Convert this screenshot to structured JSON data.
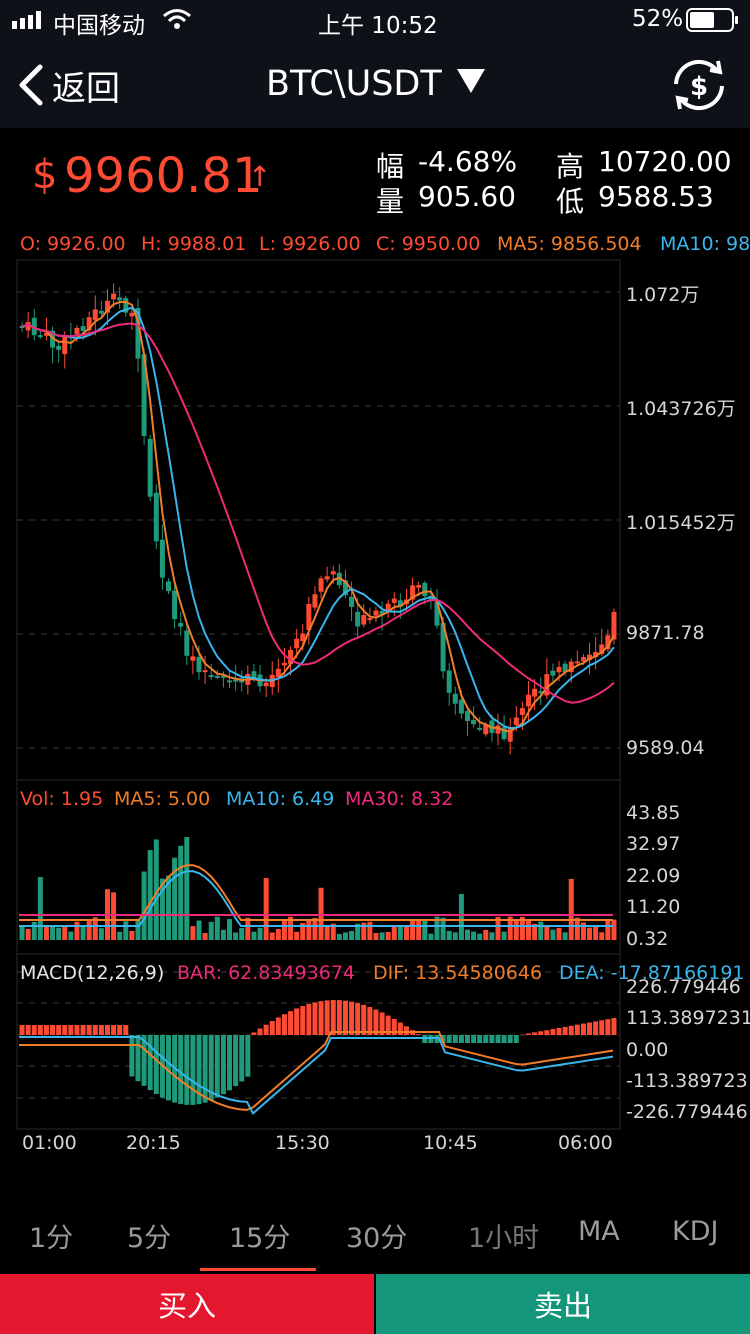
{
  "status_bar": {
    "carrier": "中国移动",
    "time": "上午 10:52",
    "battery": "52%"
  },
  "nav": {
    "back_label": "返回",
    "title": "BTC\\USDT",
    "dropdown_icon": "triangle-down-icon",
    "exchange_icon": "currency-exchange-icon"
  },
  "ticker": {
    "currency_symbol": "$",
    "price": "9960.81",
    "trend": "↑",
    "change_label": "幅",
    "change": "-4.68%",
    "high_label": "高",
    "high": "10720.00",
    "volume_label": "量",
    "volume": "905.60",
    "low_label": "低",
    "low": "9588.53"
  },
  "ohlc": {
    "open": "O: 9926.00",
    "high": "H: 9988.01",
    "low": "L: 9926.00",
    "close": "C: 9950.00",
    "ma5": "MA5: 9856.504",
    "ma10": "MA10: 98"
  },
  "price_axis": [
    "1.072万",
    "1.043726万",
    "1.015452万",
    "9871.78",
    "9589.04"
  ],
  "volume_legend": {
    "vol": "Vol: 1.95",
    "ma5": "MA5: 5.00",
    "ma10": "MA10: 6.49",
    "ma30": "MA30: 8.32"
  },
  "volume_axis": [
    "43.85",
    "32.97",
    "22.09",
    "11.20",
    "0.32"
  ],
  "macd_legend": {
    "name": "MACD(12,26,9)",
    "bar": "BAR: 62.83493674",
    "dif": "DIF: 13.54580646",
    "dea": "DEA: -17.87166191"
  },
  "macd_axis": [
    "226.779446",
    "113.3897231",
    "0.00",
    "-113.389723",
    "-226.779446"
  ],
  "time_axis": [
    "01:00",
    "20:15",
    "15:30",
    "10:45",
    "06:00"
  ],
  "tabs": [
    "1分",
    "5分",
    "15分",
    "30分",
    "1小时",
    "MA",
    "KDJ"
  ],
  "active_tab": "15分",
  "actions": {
    "buy": "买入",
    "sell": "卖出"
  },
  "colors": {
    "up": "#ff4b33",
    "down": "#1f9a7a",
    "ma5": "#f07d2a",
    "ma10": "#3ab5ec",
    "ma30": "#ee2a7b",
    "buy_bg": "#e4172f",
    "sell_bg": "#13967a"
  }
}
